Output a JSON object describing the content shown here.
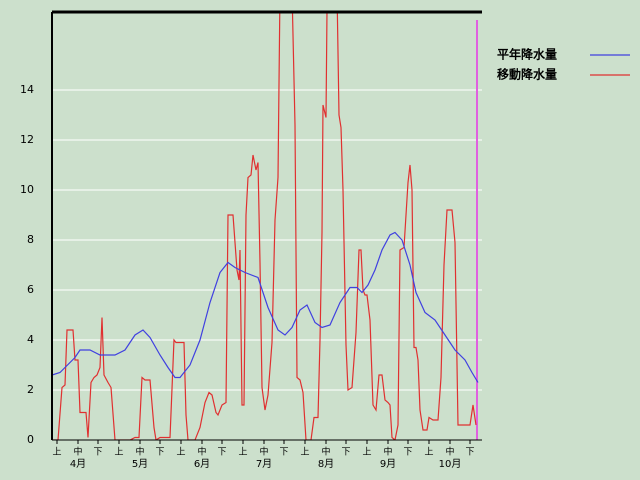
{
  "chart_data": {
    "type": "line",
    "xlim": [
      0,
      215
    ],
    "ylim": [
      0,
      17.12
    ],
    "yticks": [
      0,
      2,
      4,
      6,
      8,
      10,
      12,
      14
    ],
    "xticks": [
      {
        "value": 2.5,
        "label": "上"
      },
      {
        "value": 13,
        "label": "中"
      },
      {
        "value": 23,
        "label": "下"
      },
      {
        "value": 33.5,
        "label": "上"
      },
      {
        "value": 44,
        "label": "中"
      },
      {
        "value": 54,
        "label": "下"
      },
      {
        "value": 64.5,
        "label": "上"
      },
      {
        "value": 75,
        "label": "中"
      },
      {
        "value": 85,
        "label": "下"
      },
      {
        "value": 95.5,
        "label": "上"
      },
      {
        "value": 106,
        "label": "中"
      },
      {
        "value": 116,
        "label": "下"
      },
      {
        "value": 126.5,
        "label": "上"
      },
      {
        "value": 137,
        "label": "中"
      },
      {
        "value": 147,
        "label": "下"
      },
      {
        "value": 157.5,
        "label": "上"
      },
      {
        "value": 168,
        "label": "中"
      },
      {
        "value": 178,
        "label": "下"
      },
      {
        "value": 188.5,
        "label": "上"
      },
      {
        "value": 199,
        "label": "中"
      },
      {
        "value": 209,
        "label": "下"
      }
    ],
    "month_labels": [
      {
        "value": 13,
        "label": "4月"
      },
      {
        "value": 44,
        "label": "5月"
      },
      {
        "value": 75,
        "label": "6月"
      },
      {
        "value": 106,
        "label": "7月"
      },
      {
        "value": 137,
        "label": "8月"
      },
      {
        "value": 168,
        "label": "9月"
      },
      {
        "value": 199,
        "label": "10月"
      }
    ],
    "grid": true,
    "legend": "top-right",
    "series": [
      {
        "name": "平年降水量",
        "color": "#4040e0",
        "x": [
          0,
          4,
          11.5,
          14,
          19,
          24,
          31.5,
          36.5,
          41.5,
          45.5,
          49,
          54,
          58,
          61.5,
          64,
          69,
          74,
          79,
          84,
          88,
          91.5,
          96.5,
          103,
          108,
          113,
          116.5,
          120,
          124,
          127.5,
          131.5,
          135,
          139,
          144,
          149,
          152.5,
          155,
          158,
          161.5,
          165,
          169,
          171.5,
          175,
          179,
          182,
          186.5,
          191.5,
          196.5,
          201.5,
          206.5,
          210,
          213
        ],
        "values": [
          2.6,
          2.7,
          3.3,
          3.6,
          3.6,
          3.4,
          3.4,
          3.6,
          4.2,
          4.4,
          4.1,
          3.4,
          2.9,
          2.5,
          2.5,
          3.0,
          4.0,
          5.5,
          6.7,
          7.1,
          6.9,
          6.7,
          6.5,
          5.3,
          4.4,
          4.2,
          4.5,
          5.2,
          5.4,
          4.7,
          4.5,
          4.6,
          5.5,
          6.1,
          6.1,
          5.9,
          6.2,
          6.8,
          7.6,
          8.2,
          8.3,
          8.0,
          7.0,
          5.9,
          5.1,
          4.8,
          4.2,
          3.6,
          3.2,
          2.7,
          2.3
        ]
      },
      {
        "name": "移動降水量",
        "color": "#e03030",
        "x": [
          0,
          3,
          5,
          6.5,
          7.5,
          10.5,
          11.5,
          13,
          14,
          17,
          18,
          19.5,
          21,
          22.5,
          24,
          25,
          26,
          28,
          29.5,
          31.5,
          39,
          41.5,
          43.5,
          45,
          46.5,
          49,
          51,
          52,
          54,
          59,
          61,
          62,
          66,
          67,
          68,
          71.5,
          74,
          76.5,
          78.5,
          80,
          82,
          83,
          85,
          87,
          88,
          90.5,
          92.5,
          93.5,
          94,
          95,
          96,
          97,
          98,
          99.5,
          100.5,
          102,
          103,
          104,
          105,
          106.5,
          108,
          110,
          111.5,
          113,
          114,
          120,
          121.5,
          122.5,
          124,
          125.5,
          127,
          129.5,
          131,
          133,
          134,
          135,
          135.5,
          137,
          137.5,
          139,
          142.5,
          143.5,
          144.5,
          145.5,
          147,
          148,
          150,
          152,
          153.5,
          154.5,
          155.5,
          156.5,
          157.5,
          159,
          160.5,
          162,
          163.5,
          165,
          166.5,
          168,
          169,
          170,
          171.5,
          173,
          174,
          176,
          178,
          179,
          180,
          181,
          182,
          183,
          184,
          185.5,
          187.5,
          188.5,
          190.5,
          193,
          194.5,
          196,
          197.5,
          200,
          201.5,
          203,
          209,
          210.5,
          212
        ],
        "values": [
          0,
          0,
          2.1,
          2.2,
          4.4,
          4.4,
          3.2,
          3.2,
          1.1,
          1.1,
          0.1,
          2.3,
          2.5,
          2.6,
          2.9,
          4.9,
          2.6,
          2.3,
          2.1,
          0,
          0,
          0.1,
          0.1,
          2.5,
          2.4,
          2.4,
          0.5,
          0,
          0.1,
          0.1,
          4.0,
          3.9,
          3.9,
          1.0,
          0,
          0,
          0.5,
          1.5,
          1.9,
          1.8,
          1.1,
          1.0,
          1.4,
          1.5,
          9.0,
          9.0,
          6.8,
          6.4,
          7.6,
          1.4,
          1.4,
          9.0,
          10.5,
          10.6,
          11.4,
          10.8,
          11.1,
          7.1,
          2.1,
          1.2,
          1.8,
          3.9,
          8.8,
          10.5,
          18,
          18,
          12.6,
          2.5,
          2.4,
          1.9,
          0,
          0,
          0.9,
          0.9,
          4.0,
          8.3,
          13.4,
          12.9,
          17.2,
          18,
          18,
          13.0,
          12.5,
          10.0,
          3.8,
          2.0,
          2.1,
          4.3,
          7.6,
          7.6,
          6.0,
          5.8,
          5.8,
          4.8,
          1.4,
          1.2,
          2.6,
          2.6,
          1.6,
          1.5,
          1.4,
          0.1,
          0,
          0.6,
          7.6,
          7.7,
          10.3,
          11.0,
          10.0,
          3.7,
          3.7,
          3.2,
          1.2,
          0.4,
          0.4,
          0.9,
          0.8,
          0.8,
          2.5,
          7.0,
          9.2,
          9.2,
          7.9,
          0.6,
          0.6,
          1.4,
          0.6
        ]
      }
    ]
  }
}
